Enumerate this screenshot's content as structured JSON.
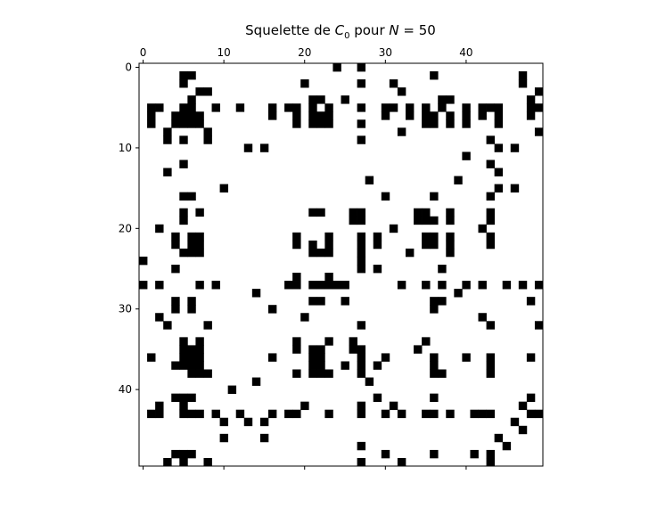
{
  "chart_data": {
    "type": "heatmap",
    "title": {
      "prefix": "Squelette de ",
      "var": "C",
      "sub": "0",
      "middle": " pour ",
      "nvar": "N",
      "suffix": " = 50"
    },
    "size": 50,
    "xlabel": "",
    "ylabel": "",
    "x_ticks": [
      0,
      10,
      20,
      30,
      40
    ],
    "y_ticks": [
      0,
      10,
      20,
      30,
      40
    ],
    "x_tick_labels": [
      "0",
      "10",
      "20",
      "30",
      "40"
    ],
    "y_tick_labels": [
      "0",
      "10",
      "20",
      "30",
      "40"
    ],
    "x_axis_position": "top",
    "colors": {
      "filled": "#000000",
      "empty": "#ffffff"
    },
    "cells": [
      [
        0,
        24
      ],
      [
        0,
        27
      ],
      [
        1,
        5
      ],
      [
        1,
        6
      ],
      [
        1,
        36
      ],
      [
        1,
        47
      ],
      [
        2,
        5
      ],
      [
        2,
        20
      ],
      [
        2,
        27
      ],
      [
        2,
        31
      ],
      [
        2,
        47
      ],
      [
        3,
        7
      ],
      [
        3,
        8
      ],
      [
        3,
        32
      ],
      [
        3,
        49
      ],
      [
        4,
        6
      ],
      [
        4,
        21
      ],
      [
        4,
        22
      ],
      [
        4,
        25
      ],
      [
        4,
        37
      ],
      [
        4,
        38
      ],
      [
        4,
        48
      ],
      [
        5,
        1
      ],
      [
        5,
        2
      ],
      [
        5,
        5
      ],
      [
        5,
        6
      ],
      [
        5,
        9
      ],
      [
        5,
        12
      ],
      [
        5,
        16
      ],
      [
        5,
        18
      ],
      [
        5,
        19
      ],
      [
        5,
        21
      ],
      [
        5,
        23
      ],
      [
        5,
        27
      ],
      [
        5,
        30
      ],
      [
        5,
        31
      ],
      [
        5,
        33
      ],
      [
        5,
        35
      ],
      [
        5,
        37
      ],
      [
        5,
        40
      ],
      [
        5,
        42
      ],
      [
        5,
        43
      ],
      [
        5,
        44
      ],
      [
        5,
        48
      ],
      [
        5,
        49
      ],
      [
        6,
        1
      ],
      [
        6,
        4
      ],
      [
        6,
        5
      ],
      [
        6,
        6
      ],
      [
        6,
        7
      ],
      [
        6,
        16
      ],
      [
        6,
        19
      ],
      [
        6,
        21
      ],
      [
        6,
        22
      ],
      [
        6,
        23
      ],
      [
        6,
        30
      ],
      [
        6,
        33
      ],
      [
        6,
        35
      ],
      [
        6,
        36
      ],
      [
        6,
        38
      ],
      [
        6,
        40
      ],
      [
        6,
        42
      ],
      [
        6,
        44
      ],
      [
        6,
        48
      ],
      [
        7,
        1
      ],
      [
        7,
        4
      ],
      [
        7,
        5
      ],
      [
        7,
        6
      ],
      [
        7,
        7
      ],
      [
        7,
        19
      ],
      [
        7,
        21
      ],
      [
        7,
        22
      ],
      [
        7,
        23
      ],
      [
        7,
        27
      ],
      [
        7,
        35
      ],
      [
        7,
        36
      ],
      [
        7,
        38
      ],
      [
        7,
        40
      ],
      [
        7,
        44
      ],
      [
        8,
        3
      ],
      [
        8,
        8
      ],
      [
        8,
        32
      ],
      [
        8,
        49
      ],
      [
        9,
        3
      ],
      [
        9,
        5
      ],
      [
        9,
        8
      ],
      [
        9,
        27
      ],
      [
        9,
        43
      ],
      [
        10,
        13
      ],
      [
        10,
        15
      ],
      [
        10,
        44
      ],
      [
        10,
        46
      ],
      [
        11,
        40
      ],
      [
        12,
        5
      ],
      [
        12,
        43
      ],
      [
        13,
        3
      ],
      [
        13,
        44
      ],
      [
        14,
        28
      ],
      [
        14,
        39
      ],
      [
        15,
        10
      ],
      [
        15,
        44
      ],
      [
        15,
        46
      ],
      [
        16,
        5
      ],
      [
        16,
        6
      ],
      [
        16,
        30
      ],
      [
        16,
        36
      ],
      [
        16,
        43
      ],
      [
        18,
        5
      ],
      [
        18,
        7
      ],
      [
        18,
        21
      ],
      [
        18,
        22
      ],
      [
        18,
        26
      ],
      [
        18,
        27
      ],
      [
        18,
        34
      ],
      [
        18,
        35
      ],
      [
        18,
        38
      ],
      [
        18,
        43
      ],
      [
        19,
        5
      ],
      [
        19,
        26
      ],
      [
        19,
        27
      ],
      [
        19,
        34
      ],
      [
        19,
        35
      ],
      [
        19,
        36
      ],
      [
        19,
        38
      ],
      [
        19,
        43
      ],
      [
        20,
        2
      ],
      [
        20,
        31
      ],
      [
        20,
        42
      ],
      [
        21,
        4
      ],
      [
        21,
        6
      ],
      [
        21,
        7
      ],
      [
        21,
        19
      ],
      [
        21,
        23
      ],
      [
        21,
        27
      ],
      [
        21,
        29
      ],
      [
        21,
        35
      ],
      [
        21,
        36
      ],
      [
        21,
        38
      ],
      [
        21,
        43
      ],
      [
        22,
        4
      ],
      [
        22,
        6
      ],
      [
        22,
        7
      ],
      [
        22,
        19
      ],
      [
        22,
        21
      ],
      [
        22,
        23
      ],
      [
        22,
        27
      ],
      [
        22,
        29
      ],
      [
        22,
        35
      ],
      [
        22,
        36
      ],
      [
        22,
        38
      ],
      [
        22,
        43
      ],
      [
        23,
        5
      ],
      [
        23,
        6
      ],
      [
        23,
        7
      ],
      [
        23,
        21
      ],
      [
        23,
        22
      ],
      [
        23,
        23
      ],
      [
        23,
        27
      ],
      [
        23,
        33
      ],
      [
        23,
        38
      ],
      [
        24,
        0
      ],
      [
        24,
        27
      ],
      [
        25,
        4
      ],
      [
        25,
        27
      ],
      [
        25,
        29
      ],
      [
        25,
        37
      ],
      [
        26,
        19
      ],
      [
        26,
        23
      ],
      [
        27,
        0
      ],
      [
        27,
        2
      ],
      [
        27,
        7
      ],
      [
        27,
        9
      ],
      [
        27,
        18
      ],
      [
        27,
        19
      ],
      [
        27,
        21
      ],
      [
        27,
        22
      ],
      [
        27,
        23
      ],
      [
        27,
        24
      ],
      [
        27,
        25
      ],
      [
        27,
        32
      ],
      [
        27,
        35
      ],
      [
        27,
        37
      ],
      [
        27,
        40
      ],
      [
        27,
        42
      ],
      [
        27,
        45
      ],
      [
        27,
        47
      ],
      [
        27,
        49
      ],
      [
        28,
        14
      ],
      [
        28,
        39
      ],
      [
        29,
        4
      ],
      [
        29,
        6
      ],
      [
        29,
        21
      ],
      [
        29,
        22
      ],
      [
        29,
        25
      ],
      [
        29,
        36
      ],
      [
        29,
        37
      ],
      [
        29,
        48
      ],
      [
        30,
        4
      ],
      [
        30,
        6
      ],
      [
        30,
        16
      ],
      [
        30,
        36
      ],
      [
        31,
        2
      ],
      [
        31,
        20
      ],
      [
        31,
        42
      ],
      [
        32,
        3
      ],
      [
        32,
        8
      ],
      [
        32,
        27
      ],
      [
        32,
        43
      ],
      [
        32,
        49
      ],
      [
        34,
        5
      ],
      [
        34,
        7
      ],
      [
        34,
        19
      ],
      [
        34,
        23
      ],
      [
        34,
        26
      ],
      [
        34,
        35
      ],
      [
        35,
        5
      ],
      [
        35,
        6
      ],
      [
        35,
        7
      ],
      [
        35,
        19
      ],
      [
        35,
        21
      ],
      [
        35,
        22
      ],
      [
        35,
        26
      ],
      [
        35,
        27
      ],
      [
        35,
        34
      ],
      [
        36,
        1
      ],
      [
        36,
        5
      ],
      [
        36,
        6
      ],
      [
        36,
        7
      ],
      [
        36,
        16
      ],
      [
        36,
        21
      ],
      [
        36,
        22
      ],
      [
        36,
        27
      ],
      [
        36,
        30
      ],
      [
        36,
        36
      ],
      [
        36,
        40
      ],
      [
        36,
        43
      ],
      [
        36,
        48
      ],
      [
        37,
        4
      ],
      [
        37,
        5
      ],
      [
        37,
        6
      ],
      [
        37,
        7
      ],
      [
        37,
        21
      ],
      [
        37,
        22
      ],
      [
        37,
        25
      ],
      [
        37,
        27
      ],
      [
        37,
        29
      ],
      [
        37,
        36
      ],
      [
        37,
        43
      ],
      [
        38,
        6
      ],
      [
        38,
        7
      ],
      [
        38,
        8
      ],
      [
        38,
        19
      ],
      [
        38,
        21
      ],
      [
        38,
        22
      ],
      [
        38,
        23
      ],
      [
        38,
        27
      ],
      [
        38,
        36
      ],
      [
        38,
        37
      ],
      [
        38,
        43
      ],
      [
        39,
        14
      ],
      [
        39,
        28
      ],
      [
        40,
        11
      ],
      [
        41,
        4
      ],
      [
        41,
        5
      ],
      [
        41,
        6
      ],
      [
        41,
        29
      ],
      [
        41,
        36
      ],
      [
        41,
        48
      ],
      [
        42,
        2
      ],
      [
        42,
        5
      ],
      [
        42,
        20
      ],
      [
        42,
        27
      ],
      [
        42,
        31
      ],
      [
        42,
        47
      ],
      [
        43,
        1
      ],
      [
        43,
        2
      ],
      [
        43,
        5
      ],
      [
        43,
        6
      ],
      [
        43,
        7
      ],
      [
        43,
        9
      ],
      [
        43,
        12
      ],
      [
        43,
        16
      ],
      [
        43,
        18
      ],
      [
        43,
        19
      ],
      [
        43,
        23
      ],
      [
        43,
        27
      ],
      [
        43,
        30
      ],
      [
        43,
        32
      ],
      [
        43,
        35
      ],
      [
        43,
        36
      ],
      [
        43,
        38
      ],
      [
        43,
        41
      ],
      [
        43,
        42
      ],
      [
        43,
        43
      ],
      [
        43,
        48
      ],
      [
        43,
        49
      ],
      [
        44,
        10
      ],
      [
        44,
        13
      ],
      [
        44,
        15
      ],
      [
        44,
        46
      ],
      [
        45,
        47
      ],
      [
        46,
        10
      ],
      [
        46,
        15
      ],
      [
        46,
        44
      ],
      [
        47,
        27
      ],
      [
        47,
        45
      ],
      [
        48,
        4
      ],
      [
        48,
        5
      ],
      [
        48,
        6
      ],
      [
        48,
        30
      ],
      [
        48,
        36
      ],
      [
        48,
        41
      ],
      [
        48,
        43
      ],
      [
        49,
        3
      ],
      [
        49,
        5
      ],
      [
        49,
        8
      ],
      [
        49,
        27
      ],
      [
        49,
        32
      ],
      [
        49,
        43
      ]
    ]
  }
}
